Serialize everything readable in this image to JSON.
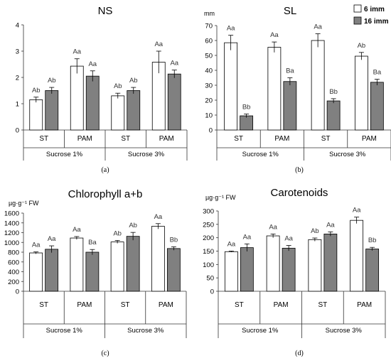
{
  "colors": {
    "series_6imm": "#ffffff",
    "series_16imm": "#808080",
    "stroke": "#000000"
  },
  "legend": {
    "items": [
      "6 imm",
      "16 imm"
    ]
  },
  "chart_data": [
    {
      "id": "a",
      "type": "bar",
      "title": "NS",
      "unit": "",
      "panel_label": "(a)",
      "ylim": [
        0,
        4
      ],
      "yticks": [
        "0",
        "1",
        "2",
        "3",
        "4"
      ],
      "categories": [
        "ST",
        "PAM",
        "ST",
        "PAM"
      ],
      "groups": [
        "Sucrose 1%",
        "Sucrose 3%"
      ],
      "series": [
        {
          "name": "6 imm",
          "values": [
            1.15,
            2.43,
            1.3,
            2.58
          ],
          "errors": [
            0.1,
            0.28,
            0.1,
            0.42
          ],
          "labels": [
            "Ab",
            "Aa",
            "Ab",
            "Aa"
          ]
        },
        {
          "name": "16 imm",
          "values": [
            1.5,
            2.05,
            1.5,
            2.13
          ],
          "errors": [
            0.12,
            0.2,
            0.12,
            0.15
          ],
          "labels": [
            "Ab",
            "Aa",
            "Ab",
            "Aa"
          ]
        }
      ]
    },
    {
      "id": "b",
      "type": "bar",
      "title": "SL",
      "unit": "mm",
      "panel_label": "(b)",
      "ylim": [
        0,
        70
      ],
      "yticks": [
        "0",
        "10",
        "20",
        "30",
        "40",
        "50",
        "60",
        "70"
      ],
      "categories": [
        "ST",
        "PAM",
        "ST",
        "PAM"
      ],
      "groups": [
        "Sucrose 1%",
        "Sucrose 3%"
      ],
      "series": [
        {
          "name": "6 imm",
          "values": [
            58.5,
            55.5,
            60,
            49.5
          ],
          "errors": [
            5,
            3.5,
            4.5,
            2.5
          ],
          "labels": [
            "Aa",
            "Aa",
            "Aa",
            "Ab"
          ]
        },
        {
          "name": "16 imm",
          "values": [
            9.5,
            32.5,
            19.5,
            32
          ],
          "errors": [
            1.2,
            2.5,
            1.5,
            2
          ],
          "labels": [
            "Bb",
            "Ba",
            "Bb",
            "Ba"
          ]
        }
      ]
    },
    {
      "id": "c",
      "type": "bar",
      "title": "Chlorophyll a+b",
      "unit": "µg·g⁻¹ FW",
      "panel_label": "(c)",
      "ylim": [
        0,
        1600
      ],
      "yticks": [
        "0",
        "200",
        "400",
        "600",
        "800",
        "1000",
        "1200",
        "1400",
        "1600"
      ],
      "categories": [
        "ST",
        "PAM",
        "ST",
        "PAM"
      ],
      "groups": [
        "Sucrose 1%",
        "Sucrose 3%"
      ],
      "series": [
        {
          "name": "6 imm",
          "values": [
            785,
            1090,
            1010,
            1330
          ],
          "errors": [
            20,
            30,
            30,
            55
          ],
          "labels": [
            "Aa",
            "Aa",
            "Ab",
            "Aa"
          ]
        },
        {
          "name": "16 imm",
          "values": [
            860,
            800,
            1125,
            875
          ],
          "errors": [
            70,
            55,
            80,
            35
          ],
          "labels": [
            "Aa",
            "Ba",
            "Ab",
            "Bb"
          ]
        }
      ]
    },
    {
      "id": "d",
      "type": "bar",
      "title": "Carotenoids",
      "unit": "µg·g⁻¹ FW",
      "panel_label": "(d)",
      "ylim": [
        0,
        300
      ],
      "yticks": [
        "0",
        "50",
        "100",
        "150",
        "200",
        "250",
        "300"
      ],
      "categories": [
        "ST",
        "PAM",
        "ST",
        "PAM"
      ],
      "groups": [
        "Sucrose 1%",
        "Sucrose 3%"
      ],
      "series": [
        {
          "name": "6 imm",
          "values": [
            148,
            207,
            193,
            265
          ],
          "errors": [
            2,
            7,
            6,
            12
          ],
          "labels": [
            "Aa",
            "Aa",
            "Ab",
            "Aa"
          ]
        },
        {
          "name": "16 imm",
          "values": [
            163,
            161,
            214,
            158
          ],
          "errors": [
            14,
            10,
            8,
            6
          ],
          "labels": [
            "Aa",
            "Aa",
            "Aa",
            "Bb"
          ]
        }
      ]
    }
  ]
}
